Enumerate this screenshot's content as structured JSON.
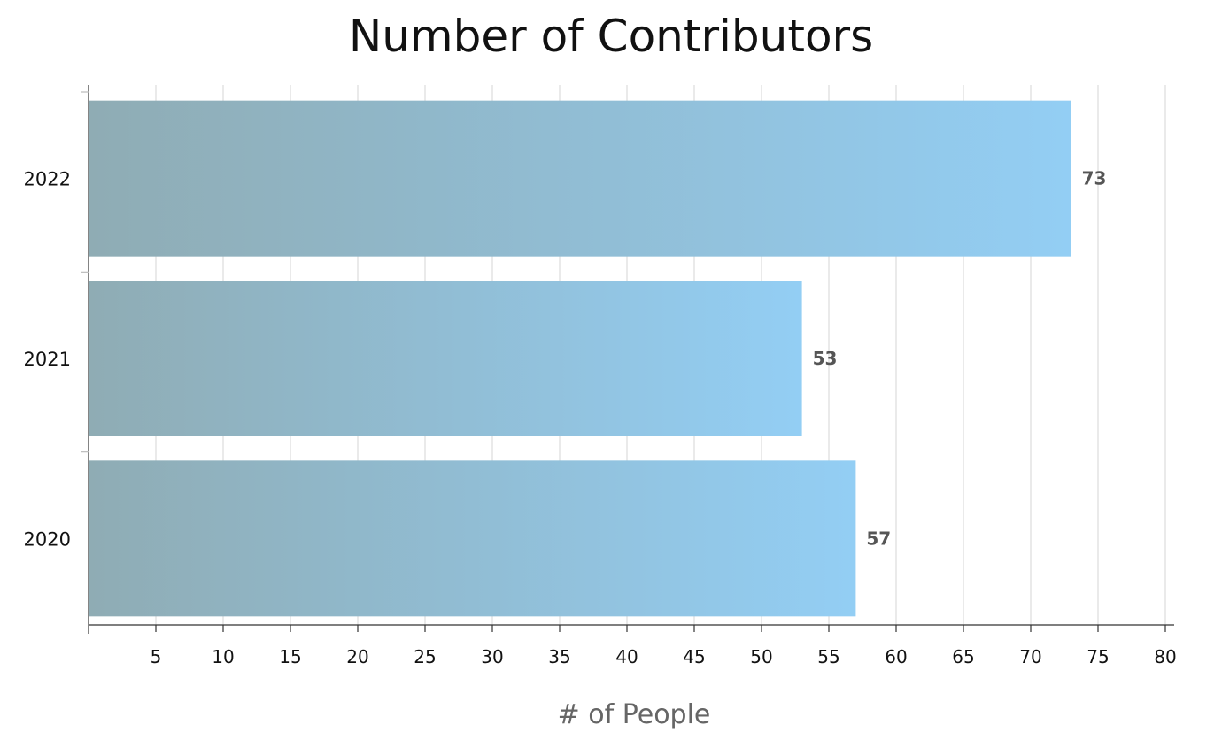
{
  "chart_data": {
    "type": "bar",
    "orientation": "horizontal",
    "title": "Number of Contributors",
    "xlabel": "# of People",
    "ylabel": "",
    "categories": [
      "2022",
      "2021",
      "2020"
    ],
    "values": [
      73,
      53,
      57
    ],
    "xlim": [
      0,
      80
    ],
    "xticks": [
      5,
      10,
      15,
      20,
      25,
      30,
      35,
      40,
      45,
      50,
      55,
      60,
      65,
      70,
      75,
      80
    ],
    "grid": true,
    "data_labels": true,
    "colors": {
      "bar_start": "#8FACB4",
      "bar_end": "#93CEF4",
      "grid": "#e3e3e3",
      "axis": "#333333"
    }
  }
}
